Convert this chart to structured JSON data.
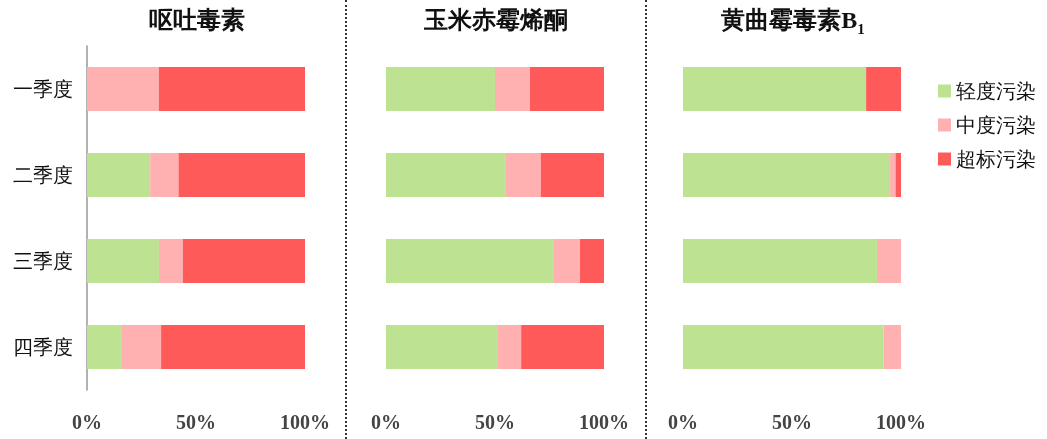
{
  "chart_data": [
    {
      "type": "bar",
      "orientation": "horizontal",
      "stacked": true,
      "title": "呕吐毒素",
      "categories": [
        "一季度",
        "二季度",
        "三季度",
        "四季度"
      ],
      "xlim": [
        0,
        100
      ],
      "xticks": [
        {
          "value": 0,
          "label": "0%"
        },
        {
          "value": 50,
          "label": "50%"
        },
        {
          "value": 100,
          "label": "100%"
        }
      ],
      "grid": false,
      "legend": false,
      "series": [
        {
          "color": "#bce292",
          "values": [
            0,
            29,
            33,
            16
          ]
        },
        {
          "color": "#ffb0b0",
          "values": [
            33,
            13,
            11,
            18
          ]
        },
        {
          "color": "#ff5a5a",
          "values": [
            67,
            58,
            56,
            66
          ]
        }
      ]
    },
    {
      "type": "bar",
      "orientation": "horizontal",
      "stacked": true,
      "title": "玉米赤霉烯酮",
      "categories": [
        null,
        null,
        null,
        null
      ],
      "xlim": [
        0,
        100
      ],
      "xticks": [
        {
          "value": 0,
          "label": "0%"
        },
        {
          "value": 50,
          "label": "50%"
        },
        {
          "value": 100,
          "label": "100%"
        }
      ],
      "grid": false,
      "legend": false,
      "tick_labels": "x",
      "series": [
        {
          "color": "#bce292",
          "values": [
            50,
            55,
            77,
            51
          ]
        },
        {
          "color": "#ffb0b0",
          "values": [
            16,
            16,
            12,
            11
          ]
        },
        {
          "color": "#ff5a5a",
          "values": [
            34,
            29,
            11,
            38
          ]
        }
      ]
    },
    {
      "type": "bar",
      "orientation": "horizontal",
      "stacked": true,
      "title": "黄曲霉毒素B$_{1}$",
      "categories": [
        null,
        null,
        null,
        null
      ],
      "xlim": [
        0,
        100
      ],
      "xticks": [
        {
          "value": 0,
          "label": "0%"
        },
        {
          "value": 50,
          "label": "50%"
        },
        {
          "value": 100,
          "label": "100%"
        }
      ],
      "grid": false,
      "legend": "right",
      "tick_labels": "x",
      "series": [
        {
          "name": "轻度污染",
          "color": "#bce292",
          "values": [
            84,
            95,
            89,
            92
          ]
        },
        {
          "name": "中度污染",
          "color": "#ffb0b0",
          "values": [
            0,
            2.5,
            11,
            8
          ]
        },
        {
          "name": "超标污染",
          "color": "#ff5a5a",
          "values": [
            16,
            2.5,
            0,
            0
          ]
        }
      ]
    }
  ]
}
